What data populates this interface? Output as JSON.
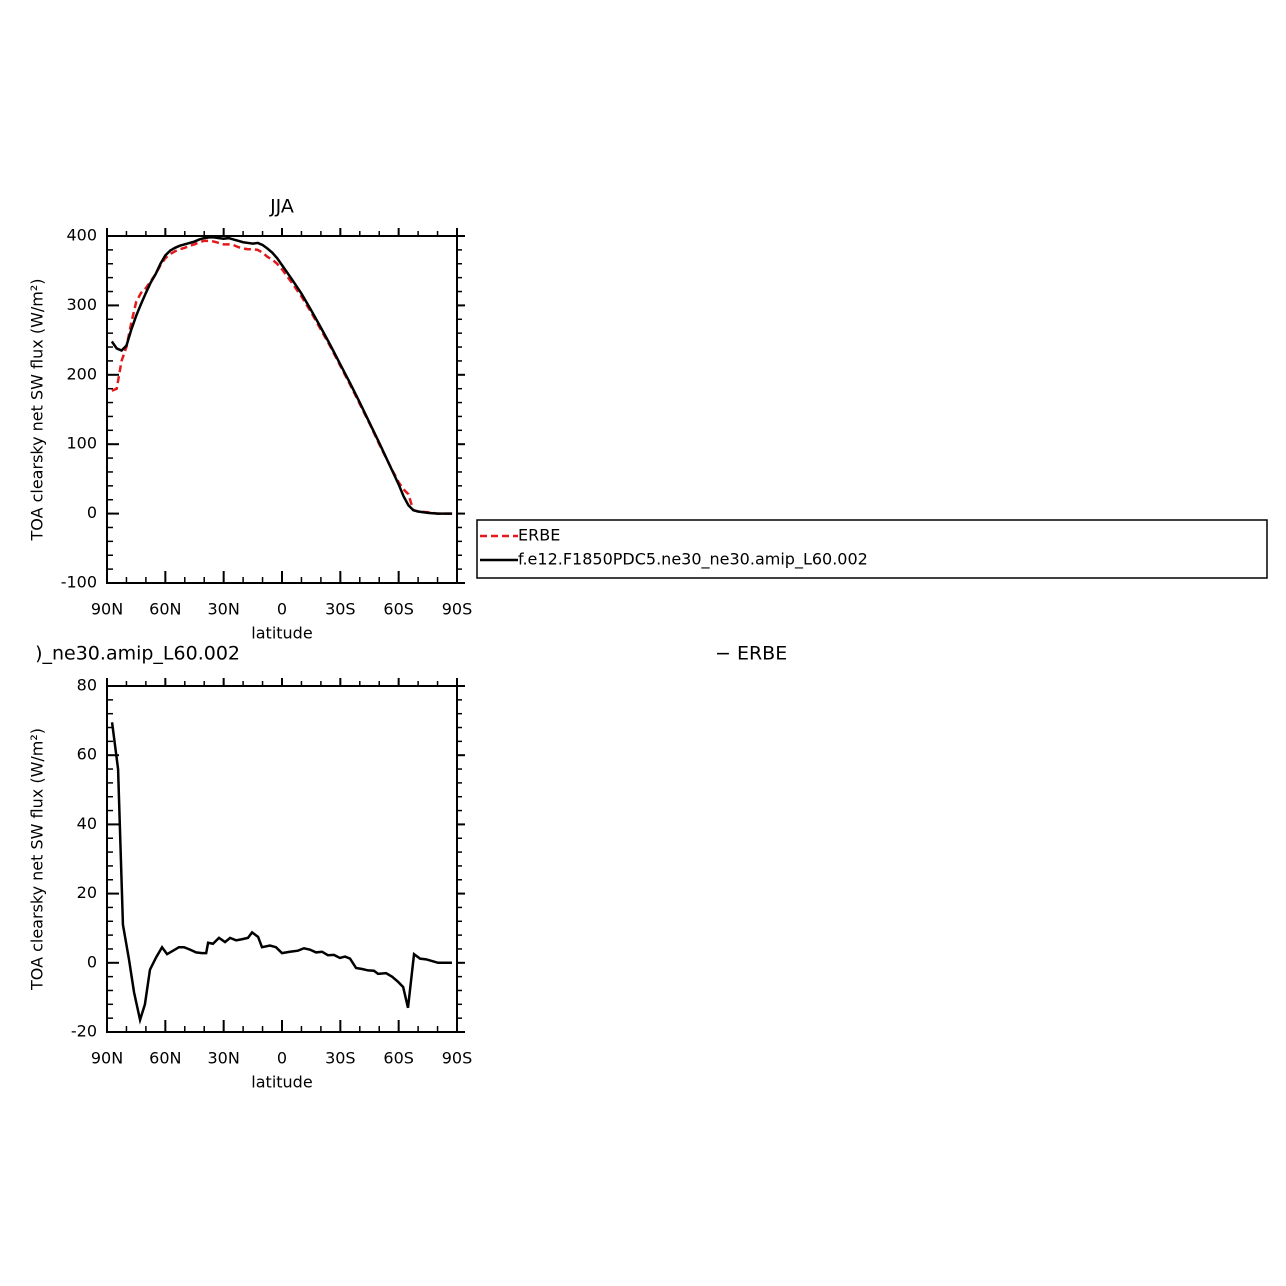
{
  "chart_data": [
    {
      "type": "line",
      "title": "JJA",
      "xlabel": "latitude",
      "ylabel": "TOA clearsky net SW flux (W/m²)",
      "x": [
        87.5,
        85,
        82.5,
        80,
        77.5,
        75,
        72.5,
        70,
        67.5,
        65,
        62.5,
        60,
        57.5,
        55,
        52.5,
        50,
        47.5,
        45,
        42.5,
        40,
        37.5,
        35,
        32.5,
        30,
        27.5,
        25,
        22.5,
        20,
        17.5,
        15,
        12.5,
        10,
        7.5,
        5,
        2.5,
        0,
        -5,
        -10,
        -15,
        -20,
        -25,
        -30,
        -35,
        -40,
        -45,
        -50,
        -55,
        -60,
        -62.5,
        -65,
        -67.5,
        -70,
        -75,
        -80,
        -85,
        -87.5
      ],
      "series": [
        {
          "name": "ERBE",
          "color": "#e31a1c",
          "style": "dashed",
          "values": [
            177,
            180,
            220,
            240,
            275,
            305,
            318,
            325,
            335,
            345,
            358,
            368,
            374,
            378,
            381,
            383,
            386,
            388,
            391,
            393,
            393,
            392,
            390,
            388,
            388,
            387,
            384,
            382,
            381,
            381,
            380,
            376,
            370,
            366,
            360,
            352,
            333,
            313,
            290,
            265,
            240,
            213,
            186,
            158,
            130,
            100,
            72,
            45,
            35,
            28,
            5,
            3,
            2,
            0,
            0,
            0
          ]
        },
        {
          "name": "f.e12.F1850PDC5.ne30_ne30.amip_L60.002",
          "color": "#000000",
          "style": "solid",
          "values": [
            248,
            238,
            235,
            242,
            265,
            285,
            302,
            318,
            333,
            345,
            360,
            372,
            379,
            383,
            386,
            388,
            390,
            392,
            395,
            397,
            398,
            398,
            397,
            396,
            397,
            395,
            393,
            391,
            390,
            389,
            390,
            387,
            382,
            376,
            368,
            358,
            338,
            317,
            293,
            268,
            242,
            215,
            188,
            160,
            131,
            102,
            72,
            42,
            25,
            12,
            5,
            3,
            1,
            0,
            0,
            0
          ]
        }
      ],
      "xlim": [
        90,
        -90
      ],
      "xticks": [
        {
          "value": 90,
          "label": "90N"
        },
        {
          "value": 60,
          "label": "60N"
        },
        {
          "value": 30,
          "label": "30N"
        },
        0,
        {
          "value": -30,
          "label": "30S"
        },
        {
          "value": -60,
          "label": "60S"
        },
        {
          "value": -90,
          "label": "90S"
        }
      ],
      "ylim": [
        -100,
        400
      ],
      "yticks": [
        -100,
        0,
        100,
        200,
        300,
        400
      ],
      "legend": "outside-right"
    },
    {
      "type": "line",
      "title": ")_ne30.amip_L60.002",
      "annotation": "− ERBE",
      "xlabel": "latitude",
      "ylabel": "TOA clearsky net SW flux (W/m²)",
      "x": [
        87.4,
        84.3,
        81.8,
        78.7,
        76.1,
        73,
        70.5,
        67.9,
        64.8,
        61.7,
        59.1,
        56,
        53,
        50.4,
        47.3,
        44.2,
        41.1,
        39,
        38,
        35.5,
        32.4,
        29.3,
        26.7,
        23.6,
        20.6,
        17.5,
        15.4,
        12.3,
        10.3,
        6.2,
        3.1,
        0,
        -4.1,
        -8.2,
        -11.3,
        -14.4,
        -17.5,
        -20.6,
        -23.6,
        -26.7,
        -29.8,
        -32.4,
        -35,
        -38.1,
        -41.2,
        -44.3,
        -47.3,
        -49.4,
        -53.5,
        -56.6,
        -59.7,
        -62.3,
        -64.8,
        -67.9,
        -71,
        -74.1,
        -77.2,
        -80.3,
        -84.4,
        -87.4
      ],
      "series": [
        {
          "color": "#000000",
          "style": "solid",
          "values": [
            69.5,
            56,
            11,
            1,
            -8.5,
            -16.5,
            -12,
            -2,
            1.5,
            4.5,
            2.5,
            3.5,
            4.5,
            4.5,
            3.8,
            3,
            2.8,
            2.8,
            5.8,
            5.5,
            7.2,
            6,
            7.2,
            6.5,
            6.8,
            7.2,
            8.8,
            7.5,
            4.5,
            5,
            4.5,
            2.8,
            3.2,
            3.5,
            4.2,
            3.8,
            3,
            3.2,
            2.2,
            2.3,
            1.4,
            1.8,
            1.2,
            -1.5,
            -1.8,
            -2.2,
            -2.3,
            -3.2,
            -3,
            -4,
            -5.5,
            -7,
            -13,
            2.5,
            1.2,
            1,
            0.5,
            0,
            0,
            0
          ]
        }
      ],
      "xlim": [
        90,
        -90
      ],
      "xticks": [
        {
          "value": 90,
          "label": "90N"
        },
        {
          "value": 60,
          "label": "60N"
        },
        {
          "value": 30,
          "label": "30N"
        },
        0,
        {
          "value": -30,
          "label": "30S"
        },
        {
          "value": -60,
          "label": "60S"
        },
        {
          "value": -90,
          "label": "90S"
        }
      ],
      "ylim": [
        -20,
        80
      ],
      "yticks": [
        -20,
        0,
        20,
        40,
        60,
        80
      ]
    }
  ]
}
